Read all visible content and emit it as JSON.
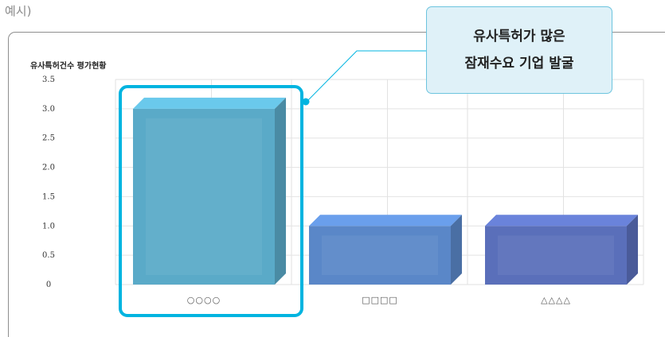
{
  "top_label": "예시)",
  "callout": {
    "line1": "유사특허가 많은",
    "line2": "잠재수요 기업 발굴"
  },
  "colors": {
    "highlight": "#00b4e0",
    "bar1": "#5aaac8",
    "bar2": "#5a87c8",
    "bar3": "#5a6fba",
    "grid": "#e2e2e2",
    "callout_bg": "#dff1f8",
    "callout_border": "#6cc4de"
  },
  "chart_data": {
    "type": "bar",
    "title": "유사특허건수 평가현황",
    "categories": [
      "○○○○",
      "□□□□",
      "△△△△"
    ],
    "values": [
      3.0,
      1.0,
      1.0
    ],
    "ylim": [
      0,
      3.5
    ],
    "yticks": [
      "0",
      "0.5",
      "1.0",
      "1.5",
      "2.0",
      "2.5",
      "3.0",
      "3.5"
    ],
    "ytick_values": [
      0,
      0.5,
      1.0,
      1.5,
      2.0,
      2.5,
      3.0,
      3.5
    ],
    "xlabel": "",
    "ylabel": "",
    "grid": true,
    "style": "3d",
    "highlighted_category": "○○○○"
  }
}
